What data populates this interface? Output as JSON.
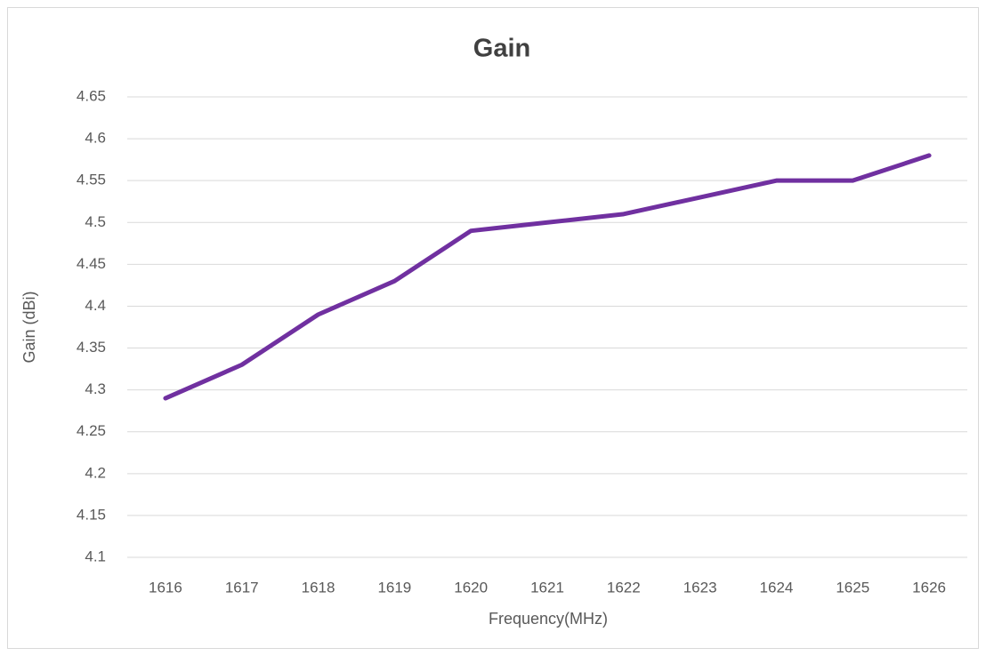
{
  "chart_data": {
    "type": "line",
    "title": "Gain",
    "x_label": "Frequency(MHz)",
    "y_label": "Gain (dBi)",
    "categories": [
      "1616",
      "1617",
      "1618",
      "1619",
      "1620",
      "1621",
      "1622",
      "1623",
      "1624",
      "1625",
      "1626"
    ],
    "series": [
      {
        "name": "Gain",
        "color": "#7030a0",
        "values": [
          4.29,
          4.33,
          4.39,
          4.43,
          4.49,
          4.5,
          4.51,
          4.53,
          4.55,
          4.55,
          4.58
        ]
      }
    ],
    "ylim": [
      4.1,
      4.65
    ],
    "yticks": [
      4.1,
      4.15,
      4.2,
      4.25,
      4.3,
      4.35,
      4.4,
      4.45,
      4.5,
      4.55,
      4.6,
      4.65
    ],
    "grid": true
  }
}
